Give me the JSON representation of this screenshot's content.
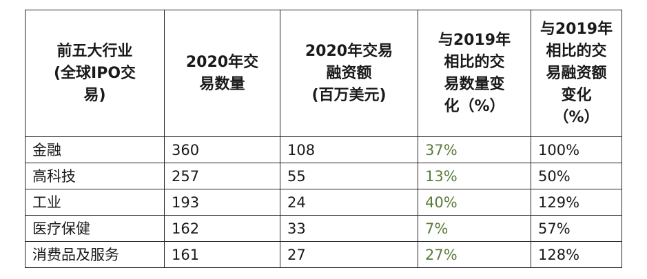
{
  "table": {
    "headers": [
      "前五大行业\n(全球IPO交\n易)",
      "2020年交\n易数量",
      "2020年交易\n融资额\n(百万美元)",
      "与2019年\n相比的交\n易数量变\n化（%）",
      "与2019年\n相比的交\n易融资额\n变化\n（%）"
    ],
    "rows": [
      [
        "金融",
        "360",
        "108",
        "37%",
        "100%"
      ],
      [
        "高科技",
        "257",
        "55",
        "13%",
        "50%"
      ],
      [
        "工业",
        "193",
        "24",
        "40%",
        "129%"
      ],
      [
        "医疗保健",
        "162",
        "33",
        "7%",
        "57%"
      ],
      [
        "消费品及服务",
        "161",
        "27",
        "27%",
        "128%"
      ]
    ]
  },
  "colors": {
    "count_change_text": "#5a7a3a",
    "text": "#1a1a1a",
    "border": "#222222"
  }
}
